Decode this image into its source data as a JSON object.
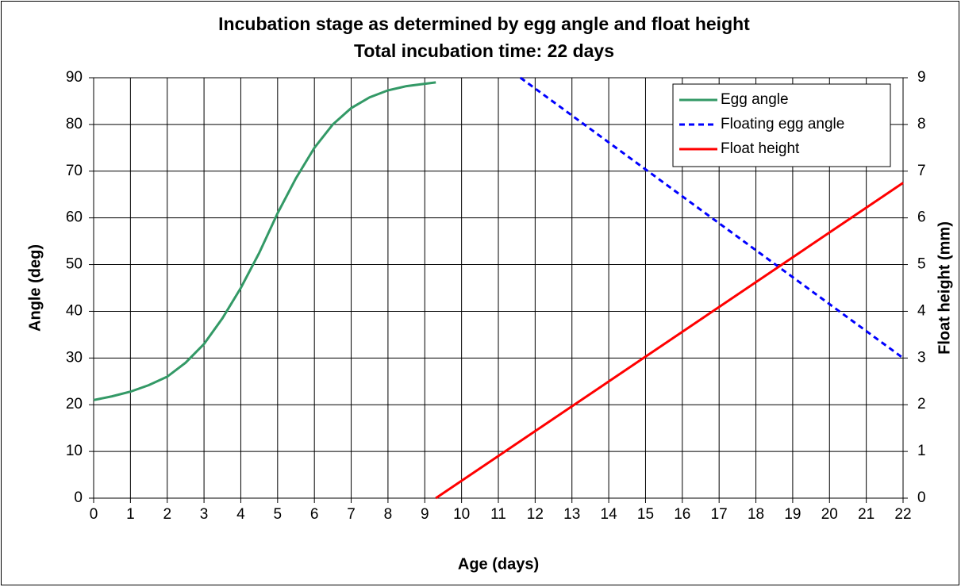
{
  "chart_data": {
    "type": "line",
    "title": "Incubation stage as determined by egg angle and float height",
    "subtitle": "Total incubation time: 22 days",
    "x_label": "Age (days)",
    "y_label": "Angle (deg)",
    "y2_label": "Float height (mm)",
    "xlim": [
      0,
      22
    ],
    "xticks": [
      0,
      1,
      2,
      3,
      4,
      5,
      6,
      7,
      8,
      9,
      10,
      11,
      12,
      13,
      14,
      15,
      16,
      17,
      18,
      19,
      20,
      21,
      22
    ],
    "ylim": [
      0,
      90
    ],
    "yticks": [
      0,
      10,
      20,
      30,
      40,
      50,
      60,
      70,
      80,
      90
    ],
    "y2lim": [
      0,
      9
    ],
    "y2ticks": [
      0,
      1,
      2,
      3,
      4,
      5,
      6,
      7,
      8,
      9
    ],
    "grid": true,
    "legend": "upper right",
    "series": [
      {
        "name": "Egg angle",
        "color": "#339966",
        "style": "solid",
        "x": [
          0,
          0.5,
          1,
          1.5,
          2,
          2.5,
          3,
          3.5,
          4,
          4.5,
          5,
          5.5,
          6,
          6.5,
          7,
          7.5,
          8,
          8.5,
          9,
          9.3
        ],
        "values": [
          21,
          21.8,
          22.8,
          24.2,
          26,
          29,
          33,
          38.5,
          45,
          52.5,
          61,
          68.5,
          75,
          80,
          83.5,
          85.8,
          87.3,
          88.2,
          88.7,
          89
        ]
      },
      {
        "name": "Floating egg angle",
        "color": "#0000ff",
        "style": "dashed",
        "x": [
          11.6,
          22
        ],
        "values": [
          90,
          30
        ]
      },
      {
        "name": "Float height",
        "color": "#ff0000",
        "style": "solid",
        "axis": "y2",
        "x": [
          9.3,
          22
        ],
        "values": [
          0,
          6.75
        ]
      }
    ]
  }
}
